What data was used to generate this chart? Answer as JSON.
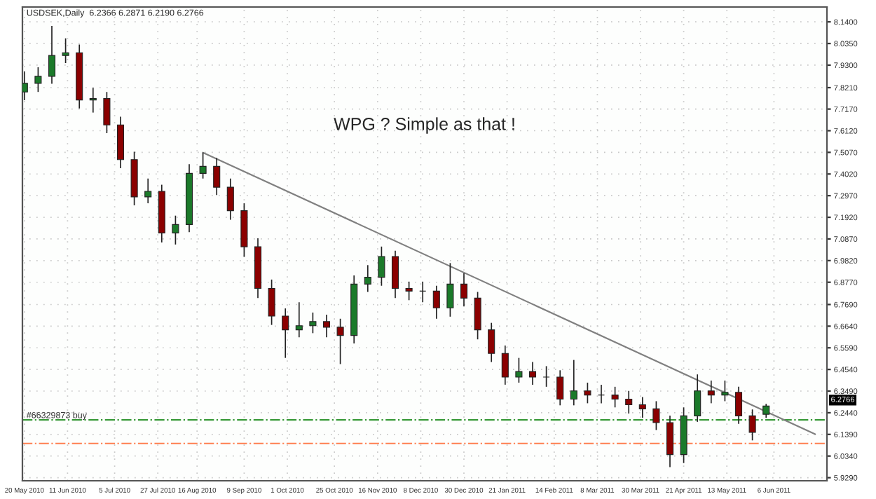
{
  "chart_data": {
    "type": "candlestick",
    "title": "USDSEK,Daily  6.2366 6.2871 6.2190 6.2766",
    "x": [
      "2010-05-20",
      "2010-05-27",
      "2010-06-03",
      "2010-06-10",
      "2010-06-17",
      "2010-06-24",
      "2010-07-01",
      "2010-07-08",
      "2010-07-15",
      "2010-07-22",
      "2010-07-29",
      "2010-08-05",
      "2010-08-12",
      "2010-08-19",
      "2010-08-26",
      "2010-09-02",
      "2010-09-09",
      "2010-09-16",
      "2010-09-23",
      "2010-09-30",
      "2010-10-07",
      "2010-10-14",
      "2010-10-21",
      "2010-10-28",
      "2010-11-04",
      "2010-11-11",
      "2010-11-18",
      "2010-11-25",
      "2010-12-02",
      "2010-12-09",
      "2010-12-16",
      "2010-12-23",
      "2010-12-30",
      "2011-01-06",
      "2011-01-13",
      "2011-01-20",
      "2011-01-27",
      "2011-02-03",
      "2011-02-10",
      "2011-02-17",
      "2011-02-24",
      "2011-03-03",
      "2011-03-10",
      "2011-03-17",
      "2011-03-24",
      "2011-03-31",
      "2011-04-07",
      "2011-04-14",
      "2011-04-21",
      "2011-04-28",
      "2011-05-05",
      "2011-05-12",
      "2011-05-19",
      "2011-05-26",
      "2011-06-02"
    ],
    "ohlc": [
      [
        7.8,
        7.9,
        7.76,
        7.842
      ],
      [
        7.842,
        7.92,
        7.8,
        7.876
      ],
      [
        7.876,
        8.12,
        7.84,
        7.977
      ],
      [
        7.977,
        8.06,
        7.94,
        7.99
      ],
      [
        7.99,
        8.03,
        7.72,
        7.761
      ],
      [
        7.761,
        7.82,
        7.7,
        7.768
      ],
      [
        7.768,
        7.8,
        7.6,
        7.64
      ],
      [
        7.64,
        7.68,
        7.43,
        7.472
      ],
      [
        7.472,
        7.51,
        7.25,
        7.291
      ],
      [
        7.291,
        7.38,
        7.26,
        7.318
      ],
      [
        7.318,
        7.35,
        7.07,
        7.116
      ],
      [
        7.116,
        7.2,
        7.06,
        7.157
      ],
      [
        7.157,
        7.45,
        7.12,
        7.405
      ],
      [
        7.405,
        7.506,
        7.38,
        7.439
      ],
      [
        7.439,
        7.48,
        7.3,
        7.338
      ],
      [
        7.338,
        7.38,
        7.18,
        7.224
      ],
      [
        7.224,
        7.26,
        7.0,
        7.049
      ],
      [
        7.049,
        7.09,
        6.8,
        6.847
      ],
      [
        6.847,
        6.89,
        6.67,
        6.713
      ],
      [
        6.713,
        6.75,
        6.51,
        6.646
      ],
      [
        6.646,
        6.78,
        6.61,
        6.666
      ],
      [
        6.666,
        6.73,
        6.63,
        6.686
      ],
      [
        6.686,
        6.72,
        6.61,
        6.659
      ],
      [
        6.659,
        6.7,
        6.48,
        6.619
      ],
      [
        6.619,
        6.91,
        6.58,
        6.868
      ],
      [
        6.868,
        6.96,
        6.83,
        6.901
      ],
      [
        6.901,
        7.05,
        6.86,
        7.002
      ],
      [
        7.002,
        7.03,
        6.8,
        6.847
      ],
      [
        6.847,
        6.88,
        6.79,
        6.834
      ],
      [
        6.834,
        6.88,
        6.78,
        6.834
      ],
      [
        6.834,
        6.86,
        6.7,
        6.753
      ],
      [
        6.753,
        6.97,
        6.71,
        6.868
      ],
      [
        6.868,
        6.92,
        6.76,
        6.8
      ],
      [
        6.8,
        6.83,
        6.6,
        6.646
      ],
      [
        6.646,
        6.68,
        6.49,
        6.532
      ],
      [
        6.532,
        6.57,
        6.38,
        6.417
      ],
      [
        6.417,
        6.51,
        6.39,
        6.444
      ],
      [
        6.444,
        6.49,
        6.38,
        6.417
      ],
      [
        6.417,
        6.47,
        6.37,
        6.417
      ],
      [
        6.417,
        6.45,
        6.28,
        6.31
      ],
      [
        6.31,
        6.5,
        6.28,
        6.35
      ],
      [
        6.35,
        6.39,
        6.29,
        6.33
      ],
      [
        6.33,
        6.38,
        6.29,
        6.33
      ],
      [
        6.33,
        6.37,
        6.27,
        6.31
      ],
      [
        6.31,
        6.35,
        6.24,
        6.283
      ],
      [
        6.283,
        6.32,
        6.22,
        6.263
      ],
      [
        6.263,
        6.3,
        6.16,
        6.196
      ],
      [
        6.196,
        6.23,
        5.98,
        6.041
      ],
      [
        6.041,
        6.27,
        6.0,
        6.229
      ],
      [
        6.229,
        6.43,
        6.2,
        6.35
      ],
      [
        6.35,
        6.4,
        6.29,
        6.33
      ],
      [
        6.33,
        6.4,
        6.3,
        6.343
      ],
      [
        6.343,
        6.37,
        6.19,
        6.229
      ],
      [
        6.229,
        6.26,
        6.11,
        6.149
      ],
      [
        6.2366,
        6.2871,
        6.219,
        6.2766
      ]
    ],
    "colors": [
      "#1b7a2a",
      "#1b7a2a",
      "#1b7a2a",
      "#1b7a2a",
      "#8b0000",
      "#1b7a2a",
      "#8b0000",
      "#8b0000",
      "#8b0000",
      "#1b7a2a",
      "#8b0000",
      "#1b7a2a",
      "#1b7a2a",
      "#1b7a2a",
      "#8b0000",
      "#8b0000",
      "#8b0000",
      "#8b0000",
      "#8b0000",
      "#8b0000",
      "#1b7a2a",
      "#1b7a2a",
      "#8b0000",
      "#8b0000",
      "#1b7a2a",
      "#1b7a2a",
      "#1b7a2a",
      "#8b0000",
      "#8b0000",
      "#222222",
      "#8b0000",
      "#1b7a2a",
      "#8b0000",
      "#8b0000",
      "#8b0000",
      "#8b0000",
      "#1b7a2a",
      "#8b0000",
      "#222222",
      "#8b0000",
      "#1b7a2a",
      "#8b0000",
      "#222222",
      "#8b0000",
      "#8b0000",
      "#8b0000",
      "#8b0000",
      "#8b0000",
      "#1b7a2a",
      "#1b7a2a",
      "#8b0000",
      "#1b7a2a",
      "#8b0000",
      "#8b0000",
      "#1b7a2a"
    ],
    "series": [
      {
        "type": "line",
        "color": "#808080",
        "x": [
          "2010-08-19",
          "2011-06-27"
        ],
        "values": [
          7.506,
          6.14
        ]
      }
    ],
    "ref_lines": [
      {
        "axis": "y",
        "value": 6.209,
        "label": "#66329873 buy",
        "color": "#3a9a3a",
        "line_style": "dashdot"
      },
      {
        "axis": "y",
        "value": 6.095,
        "color": "#ff7f50",
        "line_style": "dashdot"
      }
    ],
    "annotations": [
      "WPG ? Simple as that !",
      "6.2766"
    ],
    "xlim": [
      "2010-05-19",
      "2011-07-03"
    ],
    "ylim": [
      5.914,
      8.212
    ],
    "xticks": [
      {
        "value": "2010-05-20",
        "label": "20 May 2010"
      },
      {
        "value": "2010-06-11",
        "label": "11 Jun 2010"
      },
      {
        "value": "2010-07-05",
        "label": "5 Jul 2010"
      },
      {
        "value": "2010-07-27",
        "label": "27 Jul 2010"
      },
      {
        "value": "2010-08-16",
        "label": "16 Aug 2010"
      },
      {
        "value": "2010-09-09",
        "label": "9 Sep 2010"
      },
      {
        "value": "2010-10-01",
        "label": "1 Oct 2010"
      },
      {
        "value": "2010-10-25",
        "label": "25 Oct 2010"
      },
      {
        "value": "2010-11-16",
        "label": "16 Nov 2010"
      },
      {
        "value": "2010-12-08",
        "label": "8 Dec 2010"
      },
      {
        "value": "2010-12-30",
        "label": "30 Dec 2010"
      },
      {
        "value": "2011-01-21",
        "label": "21 Jan 2011"
      },
      {
        "value": "2011-02-14",
        "label": "14 Feb 2011"
      },
      {
        "value": "2011-03-08",
        "label": "8 Mar 2011"
      },
      {
        "value": "2011-03-30",
        "label": "30 Mar 2011"
      },
      {
        "value": "2011-04-21",
        "label": "21 Apr 2011"
      },
      {
        "value": "2011-05-13",
        "label": "13 May 2011"
      },
      {
        "value": "2011-06-06",
        "label": "6 Jun 2011"
      }
    ],
    "yticks": [
      {
        "value": 5.929,
        "label": "5.9290"
      },
      {
        "value": 6.034,
        "label": "6.0340"
      },
      {
        "value": 6.139,
        "label": "6.1390"
      },
      {
        "value": 6.244,
        "label": "6.2440"
      },
      {
        "value": 6.349,
        "label": "6.3490"
      },
      {
        "value": 6.454,
        "label": "6.4540"
      },
      {
        "value": 6.559,
        "label": "6.5590"
      },
      {
        "value": 6.664,
        "label": "6.6640"
      },
      {
        "value": 6.769,
        "label": "6.7690"
      },
      {
        "value": 6.877,
        "label": "6.8770"
      },
      {
        "value": 6.982,
        "label": "6.9820"
      },
      {
        "value": 7.087,
        "label": "7.0870"
      },
      {
        "value": 7.192,
        "label": "7.1920"
      },
      {
        "value": 7.297,
        "label": "7.2970"
      },
      {
        "value": 7.402,
        "label": "7.4020"
      },
      {
        "value": 7.507,
        "label": "7.5070"
      },
      {
        "value": 7.612,
        "label": "7.6120"
      },
      {
        "value": 7.717,
        "label": "7.7170"
      },
      {
        "value": 7.821,
        "label": "7.8210"
      },
      {
        "value": 7.93,
        "label": "7.9300"
      },
      {
        "value": 8.035,
        "label": "8.0350"
      },
      {
        "value": 8.14,
        "label": "8.1400"
      }
    ],
    "grid": true
  }
}
